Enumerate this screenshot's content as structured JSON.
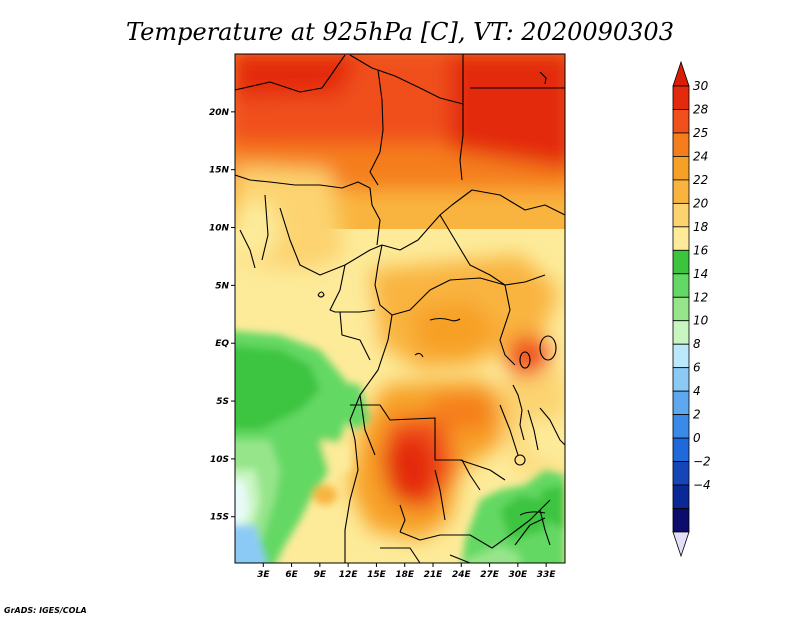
{
  "title": "Temperature at 925hPa [C], VT: 2020090303",
  "credit": "GrADS: IGES/COLA",
  "map": {
    "lon_range": [
      0,
      35
    ],
    "lat_range": [
      -19,
      25
    ],
    "lat_ticks": [
      {
        "value": 20,
        "label": "20N"
      },
      {
        "value": 15,
        "label": "15N"
      },
      {
        "value": 10,
        "label": "10N"
      },
      {
        "value": 5,
        "label": "5N"
      },
      {
        "value": 0,
        "label": "EQ"
      },
      {
        "value": -5,
        "label": "5S"
      },
      {
        "value": -10,
        "label": "10S"
      },
      {
        "value": -15,
        "label": "15S"
      }
    ],
    "lon_ticks": [
      {
        "value": 3,
        "label": "3E"
      },
      {
        "value": 6,
        "label": "6E"
      },
      {
        "value": 9,
        "label": "9E"
      },
      {
        "value": 12,
        "label": "12E"
      },
      {
        "value": 15,
        "label": "15E"
      },
      {
        "value": 18,
        "label": "18E"
      },
      {
        "value": 21,
        "label": "21E"
      },
      {
        "value": 24,
        "label": "24E"
      },
      {
        "value": 27,
        "label": "27E"
      },
      {
        "value": 30,
        "label": "30E"
      },
      {
        "value": 33,
        "label": "33E"
      }
    ]
  },
  "colorbar": {
    "bins": [
      {
        "label": "30",
        "color": "#e32a0c"
      },
      {
        "label": "28",
        "color": "#f0501b"
      },
      {
        "label": "25",
        "color": "#f57e1c"
      },
      {
        "label": "24",
        "color": "#f7a027"
      },
      {
        "label": "22",
        "color": "#f9b43f"
      },
      {
        "label": "20",
        "color": "#fcd36f"
      },
      {
        "label": "18",
        "color": "#fdeb9a"
      },
      {
        "label": "16",
        "color": "#3cc43f"
      },
      {
        "label": "14",
        "color": "#64d864"
      },
      {
        "label": "12",
        "color": "#96e58a"
      },
      {
        "label": "10",
        "color": "#c8f5c0"
      },
      {
        "label": "8",
        "color": "#bbe8fa"
      },
      {
        "label": "6",
        "color": "#8ccaf6"
      },
      {
        "label": "4",
        "color": "#5ea8ef"
      },
      {
        "label": "2",
        "color": "#3a8be8"
      },
      {
        "label": "0",
        "color": "#2069da"
      },
      {
        "label": "−2",
        "color": "#1645b8"
      },
      {
        "label": "−4",
        "color": "#0a2896"
      }
    ],
    "top_color": "#da1e06",
    "bottom_color": "#e2e0f8",
    "extra_bottom_color": "#0c0c6c"
  }
}
